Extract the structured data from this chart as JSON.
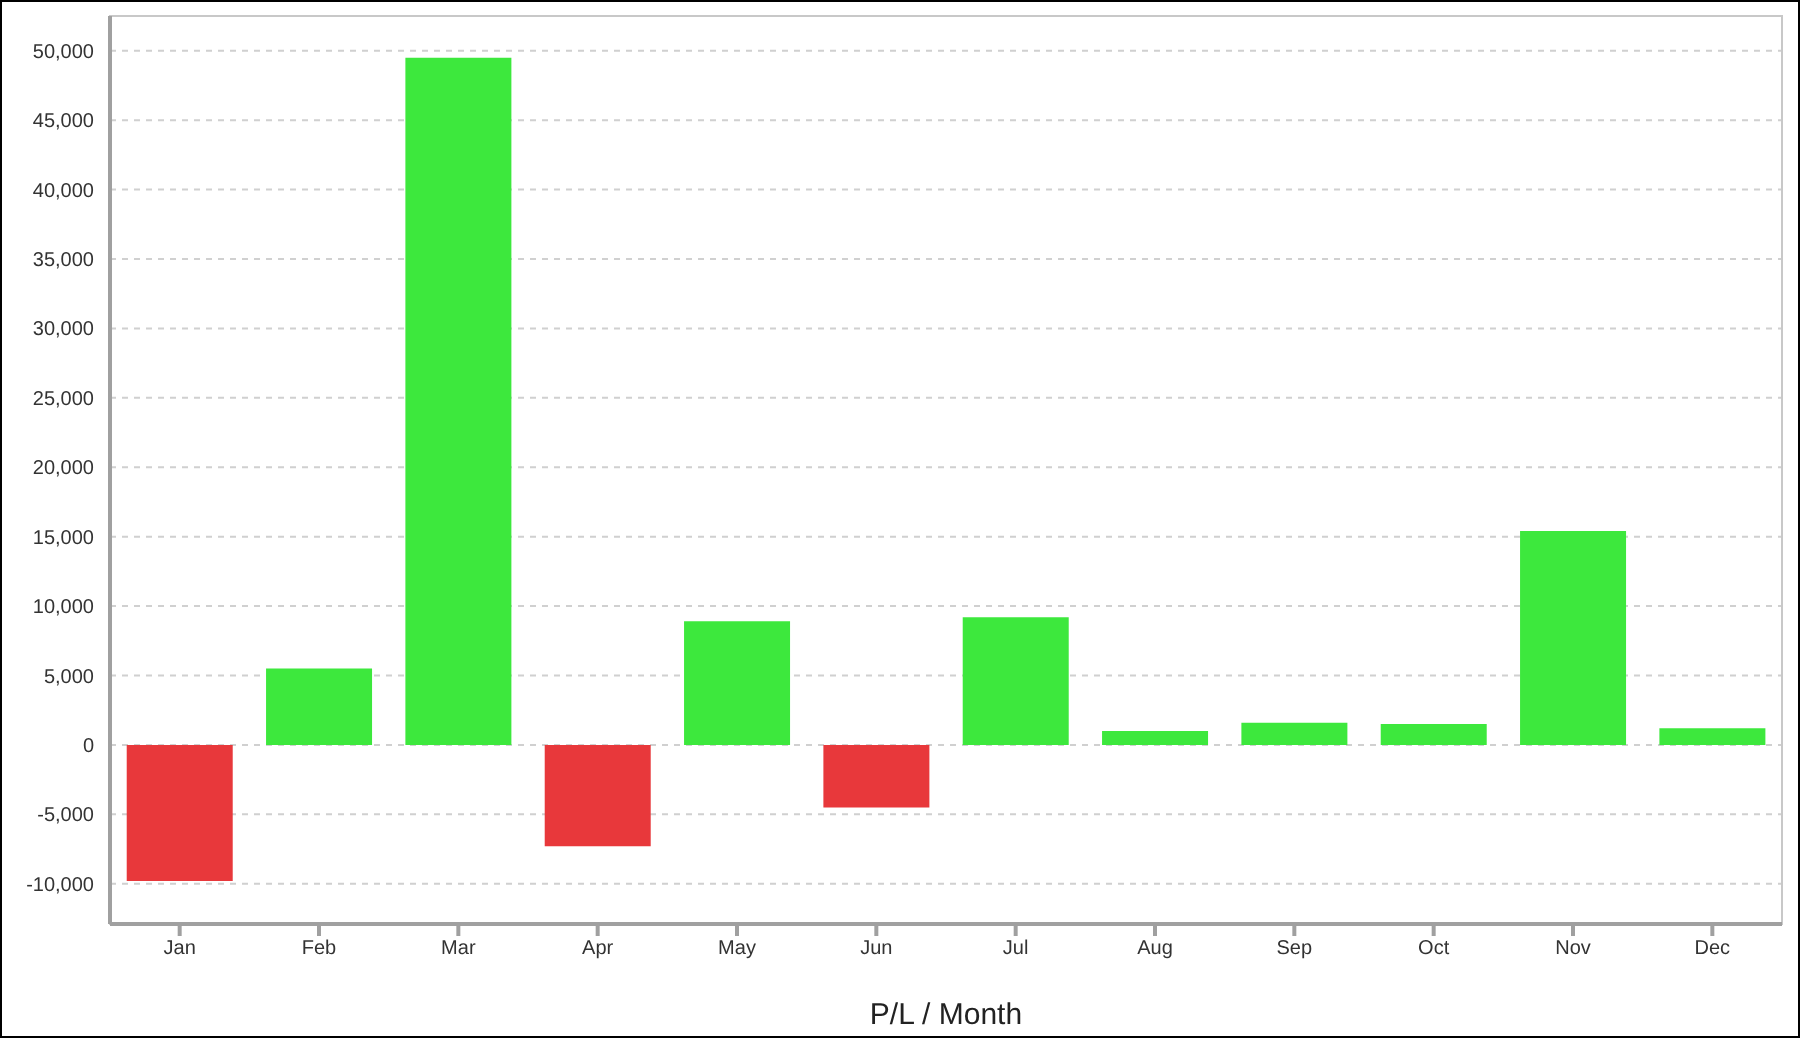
{
  "chart_data": {
    "type": "bar",
    "xlabel": "P/L / Month",
    "categories": [
      "Jan",
      "Feb",
      "Mar",
      "Apr",
      "May",
      "Jun",
      "Jul",
      "Aug",
      "Sep",
      "Oct",
      "Nov",
      "Dec"
    ],
    "values": [
      -9800,
      5500,
      49500,
      -7300,
      8900,
      -4500,
      9200,
      1000,
      1600,
      1500,
      15400,
      1200
    ],
    "colors": [
      "#e8383b",
      "#3de83d",
      "#3de83d",
      "#e8383b",
      "#3de83d",
      "#e8383b",
      "#3de83d",
      "#3de83d",
      "#3de83d",
      "#3de83d",
      "#3de83d",
      "#3de83d"
    ],
    "ylim": [
      -12900,
      52500
    ],
    "yticks": [
      {
        "value": -10000,
        "label": "-10,000"
      },
      {
        "value": -5000,
        "label": "-5,000"
      },
      0,
      {
        "value": 5000,
        "label": "5,000"
      },
      {
        "value": 10000,
        "label": "10,000"
      },
      {
        "value": 15000,
        "label": "15,000"
      },
      {
        "value": 20000,
        "label": "20,000"
      },
      {
        "value": 25000,
        "label": "25,000"
      },
      {
        "value": 30000,
        "label": "30,000"
      },
      {
        "value": 35000,
        "label": "35,000"
      },
      {
        "value": 40000,
        "label": "40,000"
      },
      {
        "value": 45000,
        "label": "45,000"
      },
      {
        "value": 50000,
        "label": "50,000"
      }
    ],
    "grid": "y",
    "legend": false
  }
}
